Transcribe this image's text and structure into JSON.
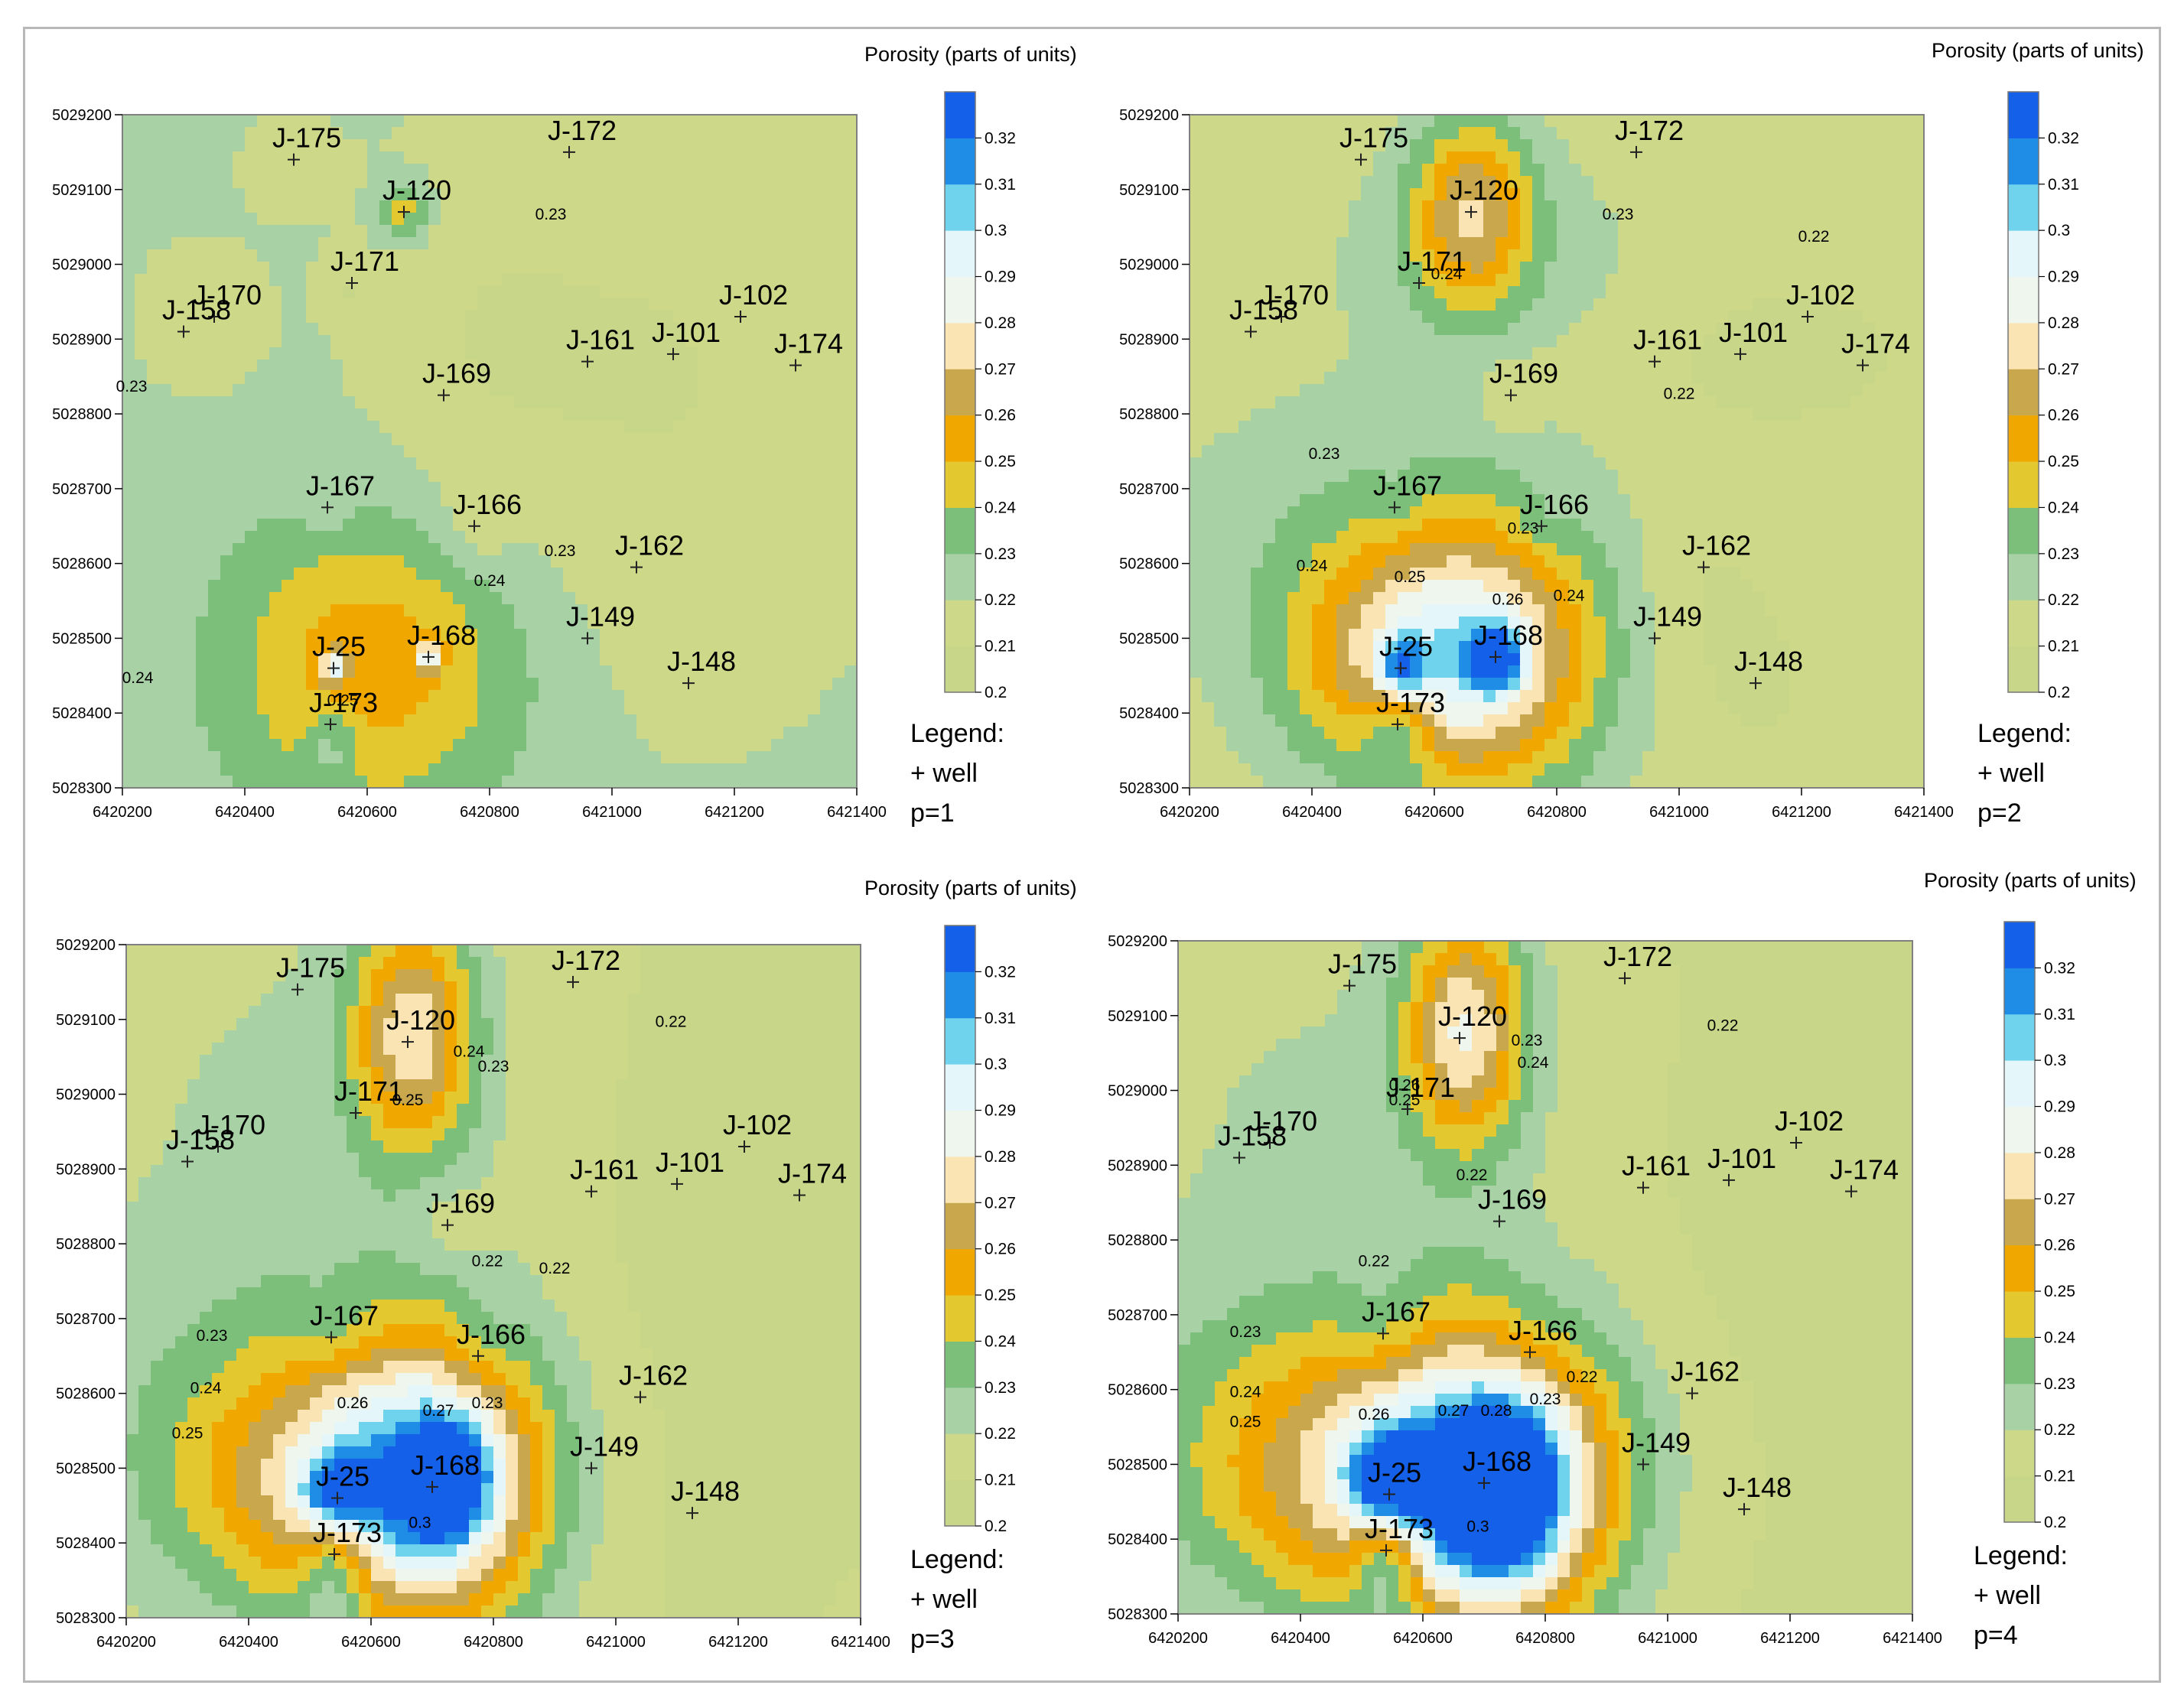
{
  "colorbar_title": "Porosity (parts of units)",
  "legend_title": "Legend:",
  "legend_item": "+ well",
  "colorbar_ticks": [
    "0.32",
    "0.31",
    "0.3",
    "0.29",
    "0.28",
    "0.27",
    "0.26",
    "0.25",
    "0.24",
    "0.23",
    "0.22",
    "0.21",
    "0.2"
  ],
  "colors": {
    "0.20-0.21": "#c8d68a",
    "0.21-0.22": "#cdd889",
    "0.22-0.23": "#a8d1a6",
    "0.23-0.24": "#7cbf7a",
    "0.24-0.25": "#e3c92f",
    "0.25-0.26": "#f0a800",
    "0.26-0.27": "#c9a84d",
    "0.27-0.28": "#fbe4b4",
    "0.28-0.29": "#eef6ee",
    "0.29-0.30": "#e5f6fa",
    "0.30-0.31": "#6fd3ee",
    "0.31-0.32": "#1f8de6",
    "0.32+": "#1560e8"
  },
  "x_ticks": [
    "6420200",
    "6420400",
    "6420600",
    "6420800",
    "6421000",
    "6421200",
    "6421400"
  ],
  "y_ticks": [
    "5029200",
    "5029100",
    "5029000",
    "5028900",
    "5028800",
    "5028700",
    "5028600",
    "5028500",
    "5028400",
    "5028300"
  ],
  "wells": [
    {
      "name": "J-175",
      "x": 6420480,
      "y": 5029140
    },
    {
      "name": "J-172",
      "x": 6420930,
      "y": 5029150
    },
    {
      "name": "J-120",
      "x": 6420660,
      "y": 5029070
    },
    {
      "name": "J-170",
      "x": 6420350,
      "y": 5028930
    },
    {
      "name": "J-158",
      "x": 6420300,
      "y": 5028910
    },
    {
      "name": "J-171",
      "x": 6420575,
      "y": 5028975
    },
    {
      "name": "J-161",
      "x": 6420960,
      "y": 5028870
    },
    {
      "name": "J-101",
      "x": 6421100,
      "y": 5028880
    },
    {
      "name": "J-102",
      "x": 6421210,
      "y": 5028930
    },
    {
      "name": "J-174",
      "x": 6421300,
      "y": 5028865
    },
    {
      "name": "J-169",
      "x": 6420725,
      "y": 5028825
    },
    {
      "name": "J-167",
      "x": 6420535,
      "y": 5028675
    },
    {
      "name": "J-166",
      "x": 6420775,
      "y": 5028650
    },
    {
      "name": "J-162",
      "x": 6421040,
      "y": 5028595
    },
    {
      "name": "J-149",
      "x": 6420960,
      "y": 5028500
    },
    {
      "name": "J-168",
      "x": 6420700,
      "y": 5028475
    },
    {
      "name": "J-25",
      "x": 6420545,
      "y": 5028460
    },
    {
      "name": "J-173",
      "x": 6420540,
      "y": 5028385
    },
    {
      "name": "J-148",
      "x": 6421125,
      "y": 5028440
    }
  ],
  "panels": [
    {
      "id": "p1",
      "caption": "p=1",
      "field": {
        "base": 0.225,
        "blobs": [
          {
            "x": 6420660,
            "y": 5029070,
            "sx": 30,
            "sy": 30,
            "a": 0.026
          },
          {
            "x": 6420545,
            "y": 5028460,
            "sx": 130,
            "sy": 130,
            "a": 0.02
          },
          {
            "x": 6420700,
            "y": 5028475,
            "sx": 150,
            "sy": 140,
            "a": 0.02
          },
          {
            "x": 6420545,
            "y": 5028460,
            "sx": 15,
            "sy": 15,
            "a": 0.04
          },
          {
            "x": 6420700,
            "y": 5028475,
            "sx": 15,
            "sy": 15,
            "a": 0.04
          },
          {
            "x": 6420470,
            "y": 5029140,
            "sx": 60,
            "sy": 50,
            "a": -0.01
          },
          {
            "x": 6420320,
            "y": 5028930,
            "sx": 90,
            "sy": 90,
            "a": -0.01
          },
          {
            "x": 6420560,
            "y": 5028970,
            "sx": 30,
            "sy": 30,
            "a": -0.01
          },
          {
            "x": 6420530,
            "y": 5028675,
            "sx": 25,
            "sy": 25,
            "a": -0.01
          },
          {
            "x": 6420775,
            "y": 5028650,
            "sx": 40,
            "sy": 50,
            "a": -0.01
          },
          {
            "x": 6421100,
            "y": 5028850,
            "sx": 280,
            "sy": 360,
            "a": -0.015
          },
          {
            "x": 6420750,
            "y": 5028900,
            "sx": 140,
            "sy": 200,
            "a": -0.008
          },
          {
            "x": 6420540,
            "y": 5028360,
            "sx": 30,
            "sy": 40,
            "a": -0.018
          }
        ]
      },
      "contour_labels": [
        {
          "text": "0.23",
          "x": 6420215,
          "y": 5028830
        },
        {
          "text": "0.23",
          "x": 6420900,
          "y": 5029060
        },
        {
          "text": "0.24",
          "x": 6420225,
          "y": 5028440
        },
        {
          "text": "0.25",
          "x": 6420560,
          "y": 5028410
        },
        {
          "text": "0.24",
          "x": 6420800,
          "y": 5028570
        },
        {
          "text": "0.23",
          "x": 6420915,
          "y": 5028610
        }
      ]
    },
    {
      "id": "p2",
      "caption": "p=2",
      "field": {
        "base": 0.215,
        "blobs": [
          {
            "x": 6420660,
            "y": 5029070,
            "sx": 70,
            "sy": 90,
            "a": 0.05
          },
          {
            "x": 6420560,
            "y": 5028470,
            "sx": 150,
            "sy": 110,
            "a": 0.05
          },
          {
            "x": 6420700,
            "y": 5028475,
            "sx": 130,
            "sy": 130,
            "a": 0.045
          },
          {
            "x": 6420545,
            "y": 5028460,
            "sx": 25,
            "sy": 25,
            "a": 0.05
          },
          {
            "x": 6420700,
            "y": 5028475,
            "sx": 30,
            "sy": 30,
            "a": 0.055
          },
          {
            "x": 6420500,
            "y": 5028650,
            "sx": 250,
            "sy": 130,
            "a": 0.012
          },
          {
            "x": 6420700,
            "y": 5029000,
            "sx": 200,
            "sy": 100,
            "a": 0.01
          },
          {
            "x": 6420540,
            "y": 5028380,
            "sx": 40,
            "sy": 50,
            "a": -0.03
          },
          {
            "x": 6421150,
            "y": 5028880,
            "sx": 200,
            "sy": 90,
            "a": -0.008
          },
          {
            "x": 6421040,
            "y": 5028560,
            "sx": 80,
            "sy": 90,
            "a": -0.007
          },
          {
            "x": 6421125,
            "y": 5028440,
            "sx": 60,
            "sy": 70,
            "a": -0.007
          },
          {
            "x": 6420725,
            "y": 5028825,
            "sx": 35,
            "sy": 40,
            "a": -0.01
          },
          {
            "x": 6420535,
            "y": 5028675,
            "sx": 30,
            "sy": 30,
            "a": -0.008
          },
          {
            "x": 6420775,
            "y": 5028650,
            "sx": 30,
            "sy": 30,
            "a": -0.008
          }
        ]
      },
      "contour_labels": [
        {
          "text": "0.23",
          "x": 6420900,
          "y": 5029060
        },
        {
          "text": "0.22",
          "x": 6421220,
          "y": 5029030
        },
        {
          "text": "0.22",
          "x": 6421000,
          "y": 5028820
        },
        {
          "text": "0.23",
          "x": 6420420,
          "y": 5028740
        },
        {
          "text": "0.23",
          "x": 6420745,
          "y": 5028640
        },
        {
          "text": "0.24",
          "x": 6420400,
          "y": 5028590
        },
        {
          "text": "0.25",
          "x": 6420560,
          "y": 5028575
        },
        {
          "text": "0.26",
          "x": 6420720,
          "y": 5028545
        },
        {
          "text": "0.24",
          "x": 6420820,
          "y": 5028550
        },
        {
          "text": "0.24",
          "x": 6420620,
          "y": 5028980
        }
      ]
    },
    {
      "id": "p3",
      "caption": "p=3",
      "field": {
        "base": 0.215,
        "blobs": [
          {
            "x": 6420670,
            "y": 5029080,
            "sx": 70,
            "sy": 110,
            "a": 0.06
          },
          {
            "x": 6420560,
            "y": 5028475,
            "sx": 190,
            "sy": 120,
            "a": 0.06
          },
          {
            "x": 6420720,
            "y": 5028480,
            "sx": 120,
            "sy": 140,
            "a": 0.06
          },
          {
            "x": 6420545,
            "y": 5028465,
            "sx": 40,
            "sy": 35,
            "a": 0.05
          },
          {
            "x": 6420720,
            "y": 5028480,
            "sx": 45,
            "sy": 50,
            "a": 0.055
          },
          {
            "x": 6420500,
            "y": 5028650,
            "sx": 300,
            "sy": 140,
            "a": 0.012
          },
          {
            "x": 6420600,
            "y": 5029000,
            "sx": 300,
            "sy": 200,
            "a": 0.008
          },
          {
            "x": 6420540,
            "y": 5028370,
            "sx": 40,
            "sy": 60,
            "a": -0.035
          },
          {
            "x": 6421150,
            "y": 5028800,
            "sx": 320,
            "sy": 480,
            "a": -0.01
          },
          {
            "x": 6420725,
            "y": 5028825,
            "sx": 45,
            "sy": 45,
            "a": -0.01
          },
          {
            "x": 6420535,
            "y": 5028690,
            "sx": 45,
            "sy": 40,
            "a": -0.01
          },
          {
            "x": 6420775,
            "y": 5028670,
            "sx": 40,
            "sy": 45,
            "a": -0.01
          }
        ]
      },
      "contour_labels": [
        {
          "text": "0.22",
          "x": 6421090,
          "y": 5029090
        },
        {
          "text": "0.24",
          "x": 6420760,
          "y": 5029050
        },
        {
          "text": "0.23",
          "x": 6420800,
          "y": 5029030
        },
        {
          "text": "0.25",
          "x": 6420660,
          "y": 5028985
        },
        {
          "text": "0.22",
          "x": 6420790,
          "y": 5028770
        },
        {
          "text": "0.22",
          "x": 6420900,
          "y": 5028760
        },
        {
          "text": "0.23",
          "x": 6420340,
          "y": 5028670
        },
        {
          "text": "0.24",
          "x": 6420330,
          "y": 5028600
        },
        {
          "text": "0.25",
          "x": 6420300,
          "y": 5028540
        },
        {
          "text": "0.26",
          "x": 6420570,
          "y": 5028580
        },
        {
          "text": "0.27",
          "x": 6420710,
          "y": 5028570
        },
        {
          "text": "0.23",
          "x": 6420790,
          "y": 5028580
        },
        {
          "text": "0.3",
          "x": 6420680,
          "y": 5028420
        }
      ]
    },
    {
      "id": "p4",
      "caption": "p=4",
      "field": {
        "base": 0.212,
        "blobs": [
          {
            "x": 6420670,
            "y": 5029080,
            "sx": 70,
            "sy": 110,
            "a": 0.065
          },
          {
            "x": 6420560,
            "y": 5028475,
            "sx": 220,
            "sy": 130,
            "a": 0.062
          },
          {
            "x": 6420730,
            "y": 5028470,
            "sx": 130,
            "sy": 150,
            "a": 0.065
          },
          {
            "x": 6420545,
            "y": 5028480,
            "sx": 45,
            "sy": 40,
            "a": 0.06
          },
          {
            "x": 6420730,
            "y": 5028460,
            "sx": 60,
            "sy": 70,
            "a": 0.065
          },
          {
            "x": 6420450,
            "y": 5028600,
            "sx": 320,
            "sy": 150,
            "a": 0.012
          },
          {
            "x": 6420500,
            "y": 5028980,
            "sx": 340,
            "sy": 250,
            "a": 0.01
          },
          {
            "x": 6420540,
            "y": 5028370,
            "sx": 40,
            "sy": 60,
            "a": -0.04
          },
          {
            "x": 6421100,
            "y": 5028800,
            "sx": 380,
            "sy": 500,
            "a": -0.006
          },
          {
            "x": 6420535,
            "y": 5028690,
            "sx": 50,
            "sy": 50,
            "a": -0.011
          },
          {
            "x": 6420775,
            "y": 5028680,
            "sx": 60,
            "sy": 60,
            "a": -0.006
          }
        ]
      },
      "contour_labels": [
        {
          "text": "0.22",
          "x": 6421090,
          "y": 5029080
        },
        {
          "text": "0.23",
          "x": 6420770,
          "y": 5029060
        },
        {
          "text": "0.24",
          "x": 6420780,
          "y": 5029030
        },
        {
          "text": "0.25",
          "x": 6420570,
          "y": 5028980
        },
        {
          "text": "0.26",
          "x": 6420570,
          "y": 5029000
        },
        {
          "text": "0.22",
          "x": 6420680,
          "y": 5028880
        },
        {
          "text": "0.22",
          "x": 6420520,
          "y": 5028765
        },
        {
          "text": "0.22",
          "x": 6420860,
          "y": 5028610
        },
        {
          "text": "0.23",
          "x": 6420310,
          "y": 5028670
        },
        {
          "text": "0.24",
          "x": 6420310,
          "y": 5028590
        },
        {
          "text": "0.25",
          "x": 6420310,
          "y": 5028550
        },
        {
          "text": "0.26",
          "x": 6420520,
          "y": 5028560
        },
        {
          "text": "0.27",
          "x": 6420650,
          "y": 5028565
        },
        {
          "text": "0.28",
          "x": 6420720,
          "y": 5028565
        },
        {
          "text": "0.23",
          "x": 6420800,
          "y": 5028580
        },
        {
          "text": "0.3",
          "x": 6420690,
          "y": 5028410
        }
      ]
    }
  ],
  "x_range": [
    6420200,
    6421400
  ],
  "y_range": [
    5028300,
    5029200
  ]
}
